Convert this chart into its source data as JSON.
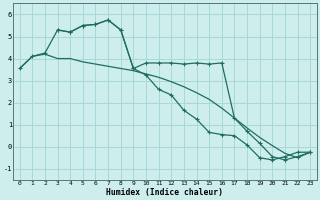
{
  "xlabel": "Humidex (Indice chaleur)",
  "bg_color": "#ceeeed",
  "grid_color": "#a8d8d8",
  "line_color": "#1e6e60",
  "xlim": [
    -0.5,
    23.5
  ],
  "ylim": [
    -1.5,
    6.5
  ],
  "yticks": [
    -1,
    0,
    1,
    2,
    3,
    4,
    5,
    6
  ],
  "xticks": [
    0,
    1,
    2,
    3,
    4,
    5,
    6,
    7,
    8,
    9,
    10,
    11,
    12,
    13,
    14,
    15,
    16,
    17,
    18,
    19,
    20,
    21,
    22,
    23
  ],
  "line1_x": [
    0,
    1,
    2,
    3,
    4,
    5,
    6,
    7,
    8,
    9,
    10,
    11,
    12,
    13,
    14,
    15,
    16,
    17,
    18,
    19,
    20,
    21,
    22,
    23
  ],
  "line1_y": [
    3.55,
    4.1,
    4.2,
    4.0,
    4.0,
    3.85,
    3.75,
    3.65,
    3.55,
    3.45,
    3.3,
    3.15,
    2.95,
    2.72,
    2.45,
    2.15,
    1.75,
    1.3,
    0.85,
    0.42,
    0.05,
    -0.3,
    -0.5,
    -0.25
  ],
  "line2_x": [
    0,
    1,
    2,
    3,
    4,
    5,
    6,
    7,
    8,
    9,
    10,
    11,
    12,
    13,
    14,
    15,
    16,
    17,
    18,
    19,
    20,
    21,
    22,
    23
  ],
  "line2_y": [
    3.55,
    4.1,
    4.25,
    5.3,
    5.2,
    5.5,
    5.55,
    5.75,
    5.3,
    3.55,
    3.8,
    3.8,
    3.8,
    3.75,
    3.8,
    3.75,
    3.8,
    1.3,
    0.7,
    0.15,
    -0.45,
    -0.6,
    -0.45,
    -0.25
  ],
  "line3_x": [
    3,
    4,
    5,
    6,
    7,
    8,
    9,
    10,
    11,
    12,
    13,
    14,
    15,
    16,
    17,
    18,
    19,
    20,
    21,
    22,
    23
  ],
  "line3_y": [
    5.3,
    5.2,
    5.5,
    5.55,
    5.75,
    5.3,
    3.55,
    3.25,
    2.6,
    2.35,
    1.65,
    1.25,
    0.65,
    0.55,
    0.5,
    0.08,
    -0.5,
    -0.6,
    -0.45,
    -0.25,
    -0.25
  ]
}
